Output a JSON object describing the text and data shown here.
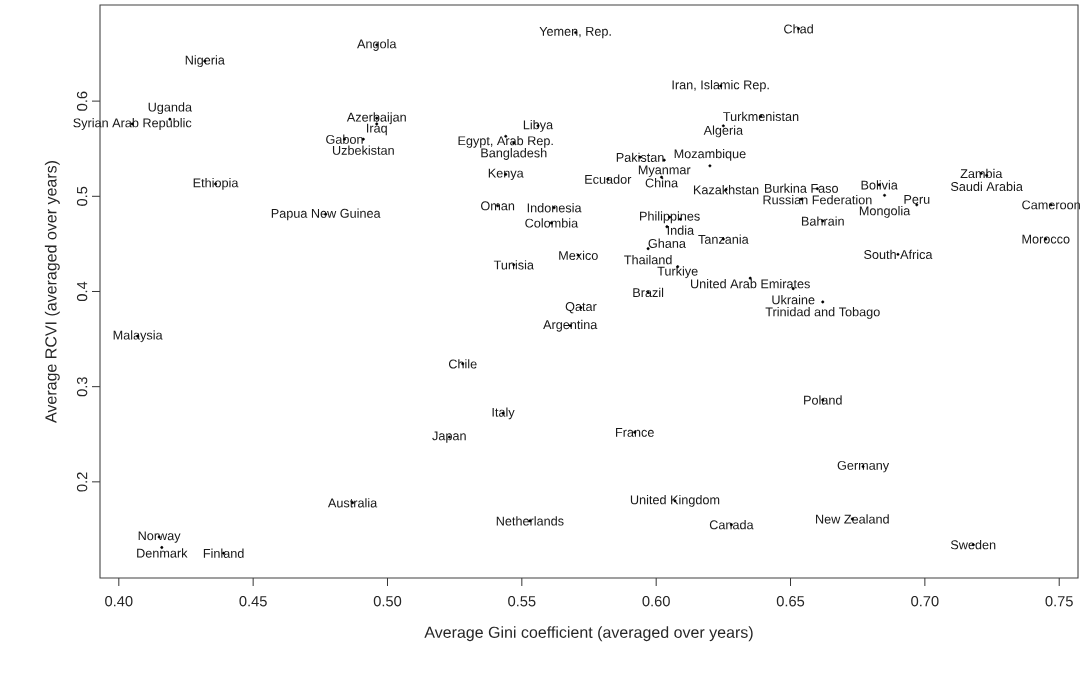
{
  "chart_data": {
    "type": "scatter",
    "xlabel": "Average Gini coefficient (averaged over years)",
    "ylabel": "Average RCVI (averaged over years)",
    "xlim": [
      0.393,
      0.757
    ],
    "ylim": [
      0.099,
      0.701
    ],
    "xticks": [
      {
        "value": 0.4,
        "label": "0.40"
      },
      {
        "value": 0.45,
        "label": "0.45"
      },
      {
        "value": 0.5,
        "label": "0.50"
      },
      {
        "value": 0.55,
        "label": "0.55"
      },
      {
        "value": 0.6,
        "label": "0.60"
      },
      {
        "value": 0.65,
        "label": "0.65"
      },
      {
        "value": 0.7,
        "label": "0.70"
      },
      {
        "value": 0.75,
        "label": "0.75"
      }
    ],
    "yticks": [
      0.2,
      0.3,
      0.4,
      0.5,
      0.6
    ],
    "marker": "circle",
    "grid": false,
    "x": [
      0.432,
      0.496,
      0.57,
      0.653,
      0.405,
      0.419,
      0.624,
      0.496,
      0.496,
      0.484,
      0.491,
      0.639,
      0.625,
      0.556,
      0.544,
      0.547,
      0.594,
      0.603,
      0.62,
      0.721,
      0.723,
      0.544,
      0.582,
      0.602,
      0.436,
      0.747,
      0.683,
      0.66,
      0.626,
      0.685,
      0.654,
      0.697,
      0.541,
      0.562,
      0.477,
      0.605,
      0.609,
      0.604,
      0.561,
      0.662,
      0.625,
      0.745,
      0.597,
      0.69,
      0.571,
      0.547,
      0.608,
      0.635,
      0.651,
      0.597,
      0.662,
      0.572,
      0.568,
      0.407,
      0.528,
      0.662,
      0.543,
      0.592,
      0.523,
      0.677,
      0.487,
      0.607,
      0.553,
      0.673,
      0.628,
      0.718,
      0.415,
      0.416,
      0.439
    ],
    "values": [
      0.642,
      0.659,
      0.672,
      0.676,
      0.576,
      0.581,
      0.616,
      0.582,
      0.576,
      0.56,
      0.56,
      0.584,
      0.574,
      0.574,
      0.563,
      0.556,
      0.541,
      0.538,
      0.532,
      0.524,
      0.522,
      0.523,
      0.518,
      0.52,
      0.513,
      0.491,
      0.512,
      0.508,
      0.507,
      0.501,
      0.497,
      0.491,
      0.49,
      0.488,
      0.481,
      0.478,
      0.476,
      0.468,
      0.472,
      0.474,
      0.455,
      0.455,
      0.445,
      0.439,
      0.438,
      0.428,
      0.426,
      0.414,
      0.403,
      0.399,
      0.389,
      0.383,
      0.364,
      0.353,
      0.324,
      0.286,
      0.272,
      0.252,
      0.247,
      0.216,
      0.178,
      0.18,
      0.159,
      0.161,
      0.155,
      0.134,
      0.142,
      0.131,
      0.125
    ],
    "value_labels": [
      "Nigeria",
      "Angola",
      "Yemen, Rep.",
      "Chad",
      "Syrian Arab Republic",
      "Uganda",
      "Iran, Islamic Rep.",
      "Azerbaijan",
      "Iraq",
      "Gabon",
      "Uzbekistan",
      "Turkmenistan",
      "Algeria",
      "Libya",
      "Egypt, Arab Rep.",
      "Bangladesh",
      "Pakistan",
      "Myanmar",
      "Mozambique",
      "Zambia",
      "Saudi Arabia",
      "Kenya",
      "Ecuador",
      "China",
      "Ethiopia",
      "Cameroon",
      "Bolivia",
      "Russian Federation",
      "Kazakhstan",
      "Mongolia",
      "Burkina Faso",
      "Peru",
      "Oman",
      "Indonesia",
      "Papua New Guinea",
      "Philippines",
      "India",
      "Ghana",
      "Colombia",
      "Bahrain",
      "Tanzania",
      "Morocco",
      "Thailand",
      "South Africa",
      "Mexico",
      "Tunisia",
      "Turkiye",
      "United Arab Emirates",
      "Ukraine",
      "Brazil",
      "Trinidad and Tobago",
      "Qatar",
      "Argentina",
      "Malaysia",
      "Chile",
      "Poland",
      "Italy",
      "France",
      "Japan",
      "Germany",
      "Australia",
      "United Kingdom",
      "Netherlands",
      "New Zealand",
      "Canada",
      "Sweden",
      "Norway",
      "Denmark",
      "Finland"
    ]
  }
}
